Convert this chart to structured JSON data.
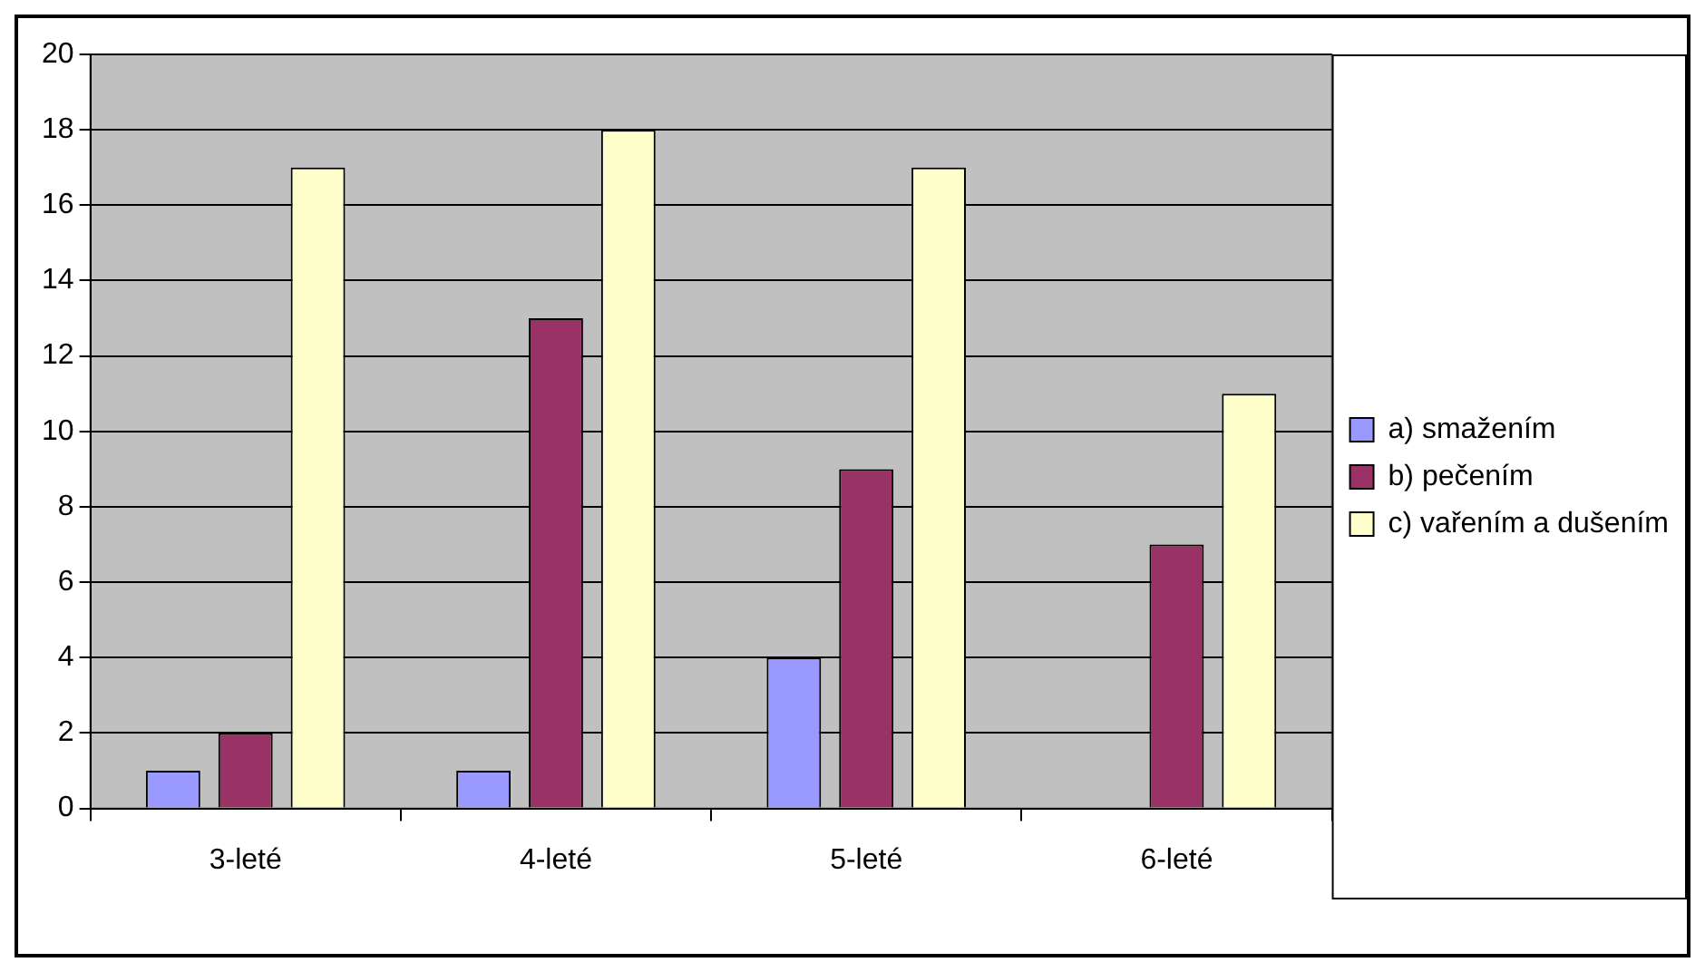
{
  "chart_data": {
    "type": "bar",
    "categories": [
      "3-leté",
      "4-leté",
      "5-leté",
      "6-leté"
    ],
    "series": [
      {
        "name": "a) smažením",
        "color": "#9999ff",
        "values": [
          1,
          1,
          4,
          0
        ]
      },
      {
        "name": "b) pečením",
        "color": "#993366",
        "values": [
          2,
          13,
          9,
          7
        ]
      },
      {
        "name": "c) vařením a dušením",
        "color": "#ffffcc",
        "values": [
          17,
          18,
          17,
          11
        ]
      }
    ],
    "ylim": [
      0,
      20
    ],
    "yticks": [
      0,
      2,
      4,
      6,
      8,
      10,
      12,
      14,
      16,
      18,
      20
    ],
    "grid": "y",
    "legend": "right"
  }
}
